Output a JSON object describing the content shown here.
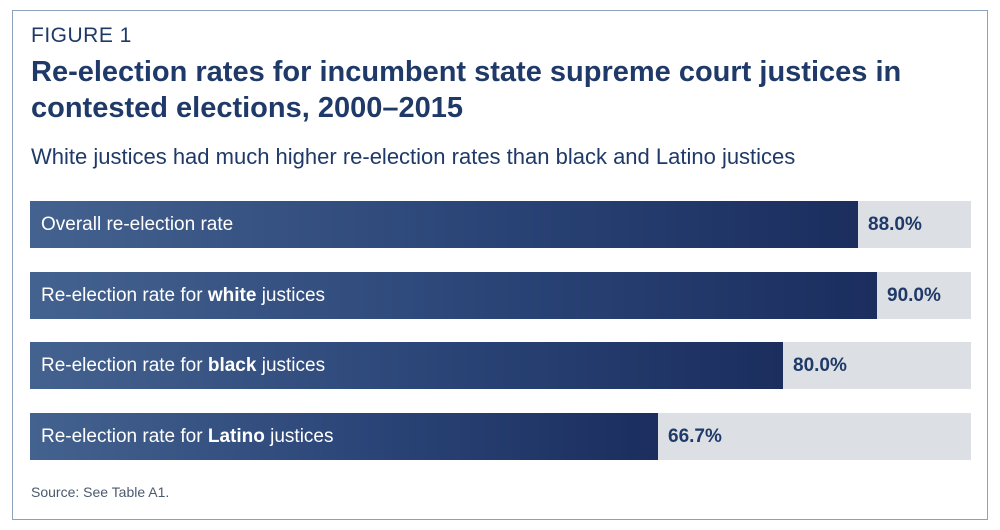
{
  "figure_label": "FIGURE 1",
  "chart_data": {
    "type": "bar",
    "orientation": "horizontal",
    "title": "Re-election rates for incumbent state supreme court justices in contested elections, 2000–2015",
    "subtitle": "White justices had much higher re-election rates than black and Latino justices",
    "categories": [
      "Overall re-election rate",
      "Re-election rate for white justices",
      "Re-election rate for black justices",
      "Re-election rate for Latino justices"
    ],
    "category_parts": [
      {
        "prefix": "Overall re-election rate",
        "bold": "",
        "suffix": ""
      },
      {
        "prefix": "Re-election rate for ",
        "bold": "white",
        "suffix": " justices"
      },
      {
        "prefix": "Re-election rate for ",
        "bold": "black",
        "suffix": " justices"
      },
      {
        "prefix": "Re-election rate for ",
        "bold": "Latino",
        "suffix": " justices"
      }
    ],
    "values": [
      88.0,
      90.0,
      80.0,
      66.7
    ],
    "value_labels": [
      "88.0%",
      "90.0%",
      "80.0%",
      "66.7%"
    ],
    "xlim": [
      0,
      100
    ],
    "unit": "%",
    "grid": false,
    "colors": {
      "bar": "#2a4477",
      "track": "#dcdfe3",
      "text": "#1f3a68"
    }
  },
  "source": "Source: See Table A1."
}
